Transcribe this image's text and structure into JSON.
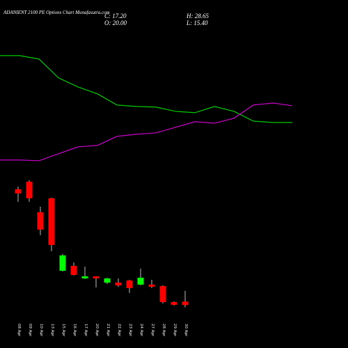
{
  "chart_data": {
    "type": "candlestick",
    "title": "ADANIENT 2100 PE Options Chart Munafasutra.com",
    "ohlc_text": {
      "close": "C: 17.20",
      "high": "H: 28.65",
      "open": "O: 20.00",
      "low": "L: 15.40"
    },
    "categories": [
      "08 Apr",
      "09 Apr",
      "10 Apr",
      "13 Apr",
      "15 Apr",
      "16 Apr",
      "17 Apr",
      "20 Apr",
      "21 Apr",
      "22 Apr",
      "23 Apr",
      "24 Apr",
      "27 Apr",
      "28 Apr",
      "29 Apr",
      "30 Apr"
    ],
    "open": [
      110.7,
      116.8,
      92.1,
      103.4,
      44.9,
      48.8,
      38.7,
      40.4,
      35.3,
      35.3,
      37.0,
      33.7,
      33.7,
      32.5,
      19.6,
      20.0
    ],
    "high": [
      112.9,
      118.0,
      96.6,
      103.9,
      58.4,
      51.6,
      48.3,
      40.4,
      39.3,
      38.7,
      37.6,
      46.6,
      37.6,
      33.1,
      20.2,
      28.65
    ],
    "low": [
      100.5,
      100.5,
      73.6,
      60.6,
      44.3,
      41.0,
      38.2,
      31.4,
      34.2,
      32.0,
      26.9,
      33.1,
      30.9,
      18.5,
      16.8,
      15.4
    ],
    "close": [
      107.3,
      103.4,
      78.1,
      65.7,
      57.3,
      41.5,
      40.4,
      38.7,
      38.7,
      33.1,
      30.9,
      39.3,
      32.0,
      19.6,
      17.4,
      17.2
    ],
    "up_color": "#00ff00",
    "down_color": "#ff0000",
    "series": [
      {
        "color": "#00cc00",
        "values": [
          218.6,
          218.6,
          215.8,
          200.6,
          193.3,
          187.7,
          178.7,
          177.5,
          177.0,
          173.6,
          172.5,
          177.5,
          173.6,
          165.7,
          164.6,
          164.6
        ]
      },
      {
        "color": "#cc00cc",
        "values": [
          134.3,
          134.3,
          133.7,
          139.3,
          144.9,
          146.1,
          153.4,
          155.1,
          156.2,
          160.7,
          165.2,
          164.0,
          168.0,
          178.7,
          180.3,
          178.1
        ]
      }
    ],
    "ylim": [
      5,
      241
    ]
  }
}
